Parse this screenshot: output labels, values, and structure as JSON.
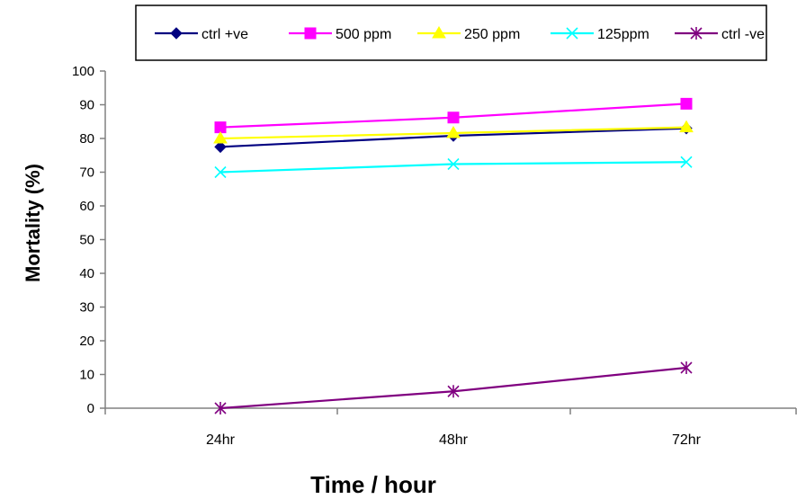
{
  "chart_data": {
    "type": "line",
    "title": "",
    "xlabel": "Time / hour",
    "ylabel": "Mortality (%)",
    "categories": [
      "24hr",
      "48hr",
      "72hr"
    ],
    "ylim": [
      0,
      100
    ],
    "yticks": [
      0,
      10,
      20,
      30,
      40,
      50,
      60,
      70,
      80,
      90,
      100
    ],
    "grid": false,
    "legend_position": "top",
    "series": [
      {
        "name": "ctrl +ve",
        "color": "#000080",
        "marker": "diamond",
        "values": [
          77.5,
          80.8,
          83.0
        ]
      },
      {
        "name": "500 ppm",
        "color": "#ff00ff",
        "marker": "square",
        "values": [
          83.3,
          86.2,
          90.3
        ]
      },
      {
        "name": "250 ppm",
        "color": "#ffff00",
        "marker": "triangle",
        "values": [
          80.0,
          81.6,
          83.3
        ]
      },
      {
        "name": "125ppm",
        "color": "#00ffff",
        "marker": "x",
        "values": [
          70.0,
          72.4,
          73.0
        ]
      },
      {
        "name": "ctrl -ve",
        "color": "#800080",
        "marker": "star",
        "values": [
          0.0,
          5.0,
          12.0
        ]
      }
    ]
  }
}
